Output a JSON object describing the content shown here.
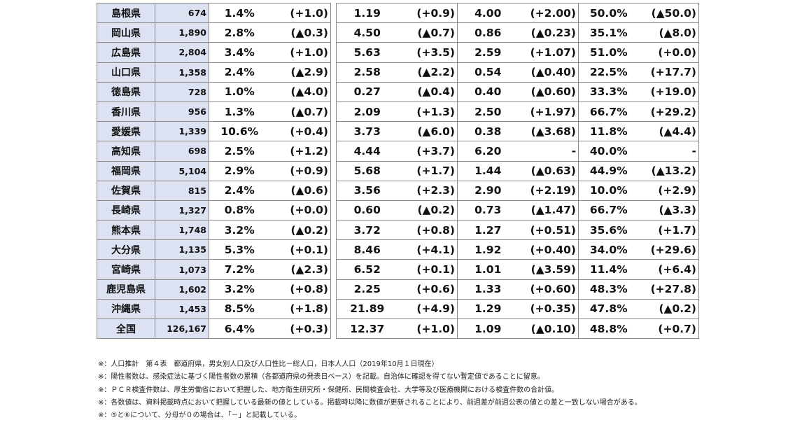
{
  "rows": [
    {
      "name": "島根県",
      "pop": "674",
      "c1": "1.4%",
      "d1": "(+1.0)",
      "c2": "1.19",
      "d2": "(+0.9)",
      "c3": "4.00",
      "d3": "(+2.00)",
      "c4": "50.0%",
      "d4": "(▲50.0)"
    },
    {
      "name": "岡山県",
      "pop": "1,890",
      "c1": "2.8%",
      "d1": "(▲0.3)",
      "c2": "4.50",
      "d2": "(▲0.7)",
      "c3": "0.86",
      "d3": "(▲0.23)",
      "c4": "35.1%",
      "d4": "(▲8.0)"
    },
    {
      "name": "広島県",
      "pop": "2,804",
      "c1": "3.4%",
      "d1": "(+1.0)",
      "c2": "5.63",
      "d2": "(+3.5)",
      "c3": "2.59",
      "d3": "(+1.07)",
      "c4": "51.0%",
      "d4": "(+0.0)"
    },
    {
      "name": "山口県",
      "pop": "1,358",
      "c1": "2.4%",
      "d1": "(▲2.9)",
      "c2": "2.58",
      "d2": "(▲2.2)",
      "c3": "0.54",
      "d3": "(▲0.40)",
      "c4": "22.5%",
      "d4": "(+17.7)"
    },
    {
      "name": "徳島県",
      "pop": "728",
      "c1": "1.0%",
      "d1": "(▲4.0)",
      "c2": "0.27",
      "d2": "(▲0.4)",
      "c3": "0.40",
      "d3": "(▲0.60)",
      "c4": "33.3%",
      "d4": "(+19.0)"
    },
    {
      "name": "香川県",
      "pop": "956",
      "c1": "1.3%",
      "d1": "(▲0.7)",
      "c2": "2.09",
      "d2": "(+1.3)",
      "c3": "2.50",
      "d3": "(+1.97)",
      "c4": "66.7%",
      "d4": "(+29.2)"
    },
    {
      "name": "愛媛県",
      "pop": "1,339",
      "c1": "10.6%",
      "d1": "(+0.4)",
      "c2": "3.73",
      "d2": "(▲6.0)",
      "c3": "0.38",
      "d3": "(▲3.68)",
      "c4": "11.8%",
      "d4": "(▲4.4)"
    },
    {
      "name": "高知県",
      "pop": "698",
      "c1": "2.5%",
      "d1": "(+1.2)",
      "c2": "4.44",
      "d2": "(+3.7)",
      "c3": "6.20",
      "d3": "-",
      "c4": "40.0%",
      "d4": "-"
    },
    {
      "name": "福岡県",
      "pop": "5,104",
      "c1": "2.9%",
      "d1": "(+0.9)",
      "c2": "5.68",
      "d2": "(+1.7)",
      "c3": "1.44",
      "d3": "(▲0.63)",
      "c4": "44.9%",
      "d4": "(▲13.2)"
    },
    {
      "name": "佐賀県",
      "pop": "815",
      "c1": "2.4%",
      "d1": "(▲0.6)",
      "c2": "3.56",
      "d2": "(+2.3)",
      "c3": "2.90",
      "d3": "(+2.19)",
      "c4": "10.0%",
      "d4": "(+2.9)"
    },
    {
      "name": "長崎県",
      "pop": "1,327",
      "c1": "0.8%",
      "d1": "(+0.0)",
      "c2": "0.60",
      "d2": "(▲0.2)",
      "c3": "0.73",
      "d3": "(▲1.47)",
      "c4": "66.7%",
      "d4": "(▲3.3)"
    },
    {
      "name": "熊本県",
      "pop": "1,748",
      "c1": "3.2%",
      "d1": "(▲0.2)",
      "c2": "3.72",
      "d2": "(+0.8)",
      "c3": "1.27",
      "d3": "(+0.51)",
      "c4": "35.6%",
      "d4": "(+1.7)"
    },
    {
      "name": "大分県",
      "pop": "1,135",
      "c1": "5.3%",
      "d1": "(+0.1)",
      "c2": "8.46",
      "d2": "(+4.1)",
      "c3": "1.92",
      "d3": "(+0.40)",
      "c4": "34.0%",
      "d4": "(+29.6)"
    },
    {
      "name": "宮崎県",
      "pop": "1,073",
      "c1": "7.2%",
      "d1": "(▲2.3)",
      "c2": "6.52",
      "d2": "(+0.1)",
      "c3": "1.01",
      "d3": "(▲3.59)",
      "c4": "11.4%",
      "d4": "(+6.4)"
    },
    {
      "name": "鹿児島県",
      "pop": "1,602",
      "c1": "3.2%",
      "d1": "(+0.8)",
      "c2": "2.25",
      "d2": "(+0.6)",
      "c3": "1.33",
      "d3": "(+0.60)",
      "c4": "48.3%",
      "d4": "(+27.8)"
    },
    {
      "name": "沖縄県",
      "pop": "1,453",
      "c1": "8.5%",
      "d1": "(+1.8)",
      "c2": "21.89",
      "d2": "(+4.9)",
      "c3": "1.29",
      "d3": "(+0.35)",
      "c4": "47.8%",
      "d4": "(▲0.2)"
    },
    {
      "name": "全国",
      "pop": "126,167",
      "c1": "6.4%",
      "d1": "(+0.3)",
      "c2": "12.37",
      "d2": "(+1.0)",
      "c3": "1.09",
      "d3": "(▲0.10)",
      "c4": "48.8%",
      "d4": "(+0.7)"
    }
  ],
  "notes": [
    "※：人口推計　第４表　都道府県，男女別人口及び人口性比－総人口，日本人人口（2019年10月１日現在）",
    "※：陽性者数は、感染症法に基づく陽性者数の累積（各都道府県の発表日ベース）を記載。自治体に確認を得てない暫定値であることに留意。",
    "※：ＰＣＲ検査件数は、厚生労働省において把握した、地方衛生研究所・保健所、民間検査会社、大学等及び医療機関における検査件数の合計値。",
    "※：各数値は、資料掲載時点において把握している最新の値としている。掲載時以降に数値が更新されることにより、前週差が前週公表の値との差と一致しない場合がある。",
    "※：⑤と⑥について、分母が０の場合は、「－」と記載している。"
  ],
  "colors": {
    "header_cell_bg": "#dce2f2",
    "border": "#8a8a8a"
  }
}
